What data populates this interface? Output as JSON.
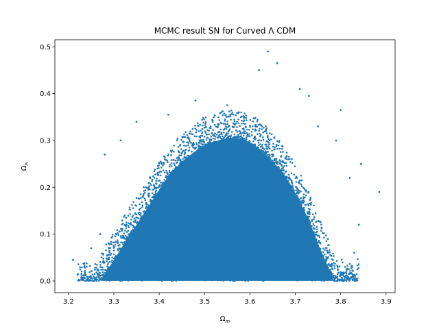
{
  "chart_data": {
    "type": "scatter",
    "title": "MCMC result SN for Curved Λ CDM",
    "xlabel": "Ω",
    "xlabel_sub": "m",
    "ylabel": "Ω",
    "ylabel_sub": "Λ",
    "xlim": [
      3.17,
      3.92
    ],
    "ylim": [
      -0.025,
      0.515
    ],
    "xticks": [
      3.2,
      3.3,
      3.4,
      3.5,
      3.6,
      3.7,
      3.8,
      3.9
    ],
    "xtick_labels": [
      "3.2",
      "3.3",
      "3.4",
      "3.5",
      "3.6",
      "3.7",
      "3.8",
      "3.9"
    ],
    "yticks": [
      0.0,
      0.1,
      0.2,
      0.3,
      0.4,
      0.5
    ],
    "ytick_labels": [
      "0.0",
      "0.1",
      "0.2",
      "0.3",
      "0.4",
      "0.5"
    ],
    "grid": false,
    "marker_color": "#1f77b4",
    "dense_envelope": {
      "x": [
        3.27,
        3.29,
        3.31,
        3.33,
        3.35,
        3.37,
        3.39,
        3.41,
        3.43,
        3.45,
        3.47,
        3.49,
        3.51,
        3.53,
        3.55,
        3.57,
        3.59,
        3.61,
        3.63,
        3.65,
        3.67,
        3.69,
        3.71,
        3.73,
        3.75,
        3.77,
        3.785
      ],
      "y": [
        0.0,
        0.03,
        0.06,
        0.09,
        0.12,
        0.15,
        0.18,
        0.21,
        0.235,
        0.255,
        0.27,
        0.285,
        0.295,
        0.3,
        0.305,
        0.305,
        0.3,
        0.29,
        0.275,
        0.255,
        0.235,
        0.205,
        0.17,
        0.13,
        0.08,
        0.035,
        0.0
      ]
    },
    "outlier_points": [
      {
        "x": 3.21,
        "y": 0.045
      },
      {
        "x": 3.235,
        "y": 0.03
      },
      {
        "x": 3.25,
        "y": 0.07
      },
      {
        "x": 3.27,
        "y": 0.1
      },
      {
        "x": 3.28,
        "y": 0.27
      },
      {
        "x": 3.315,
        "y": 0.3
      },
      {
        "x": 3.35,
        "y": 0.34
      },
      {
        "x": 3.42,
        "y": 0.355
      },
      {
        "x": 3.48,
        "y": 0.385
      },
      {
        "x": 3.55,
        "y": 0.375
      },
      {
        "x": 3.62,
        "y": 0.45
      },
      {
        "x": 3.64,
        "y": 0.49
      },
      {
        "x": 3.66,
        "y": 0.465
      },
      {
        "x": 3.71,
        "y": 0.41
      },
      {
        "x": 3.73,
        "y": 0.395
      },
      {
        "x": 3.75,
        "y": 0.33
      },
      {
        "x": 3.79,
        "y": 0.3
      },
      {
        "x": 3.8,
        "y": 0.365
      },
      {
        "x": 3.82,
        "y": 0.22
      },
      {
        "x": 3.845,
        "y": 0.25
      },
      {
        "x": 3.84,
        "y": 0.12
      },
      {
        "x": 3.885,
        "y": 0.19
      },
      {
        "x": 3.83,
        "y": 0.06
      },
      {
        "x": 3.81,
        "y": 0.03
      }
    ]
  }
}
